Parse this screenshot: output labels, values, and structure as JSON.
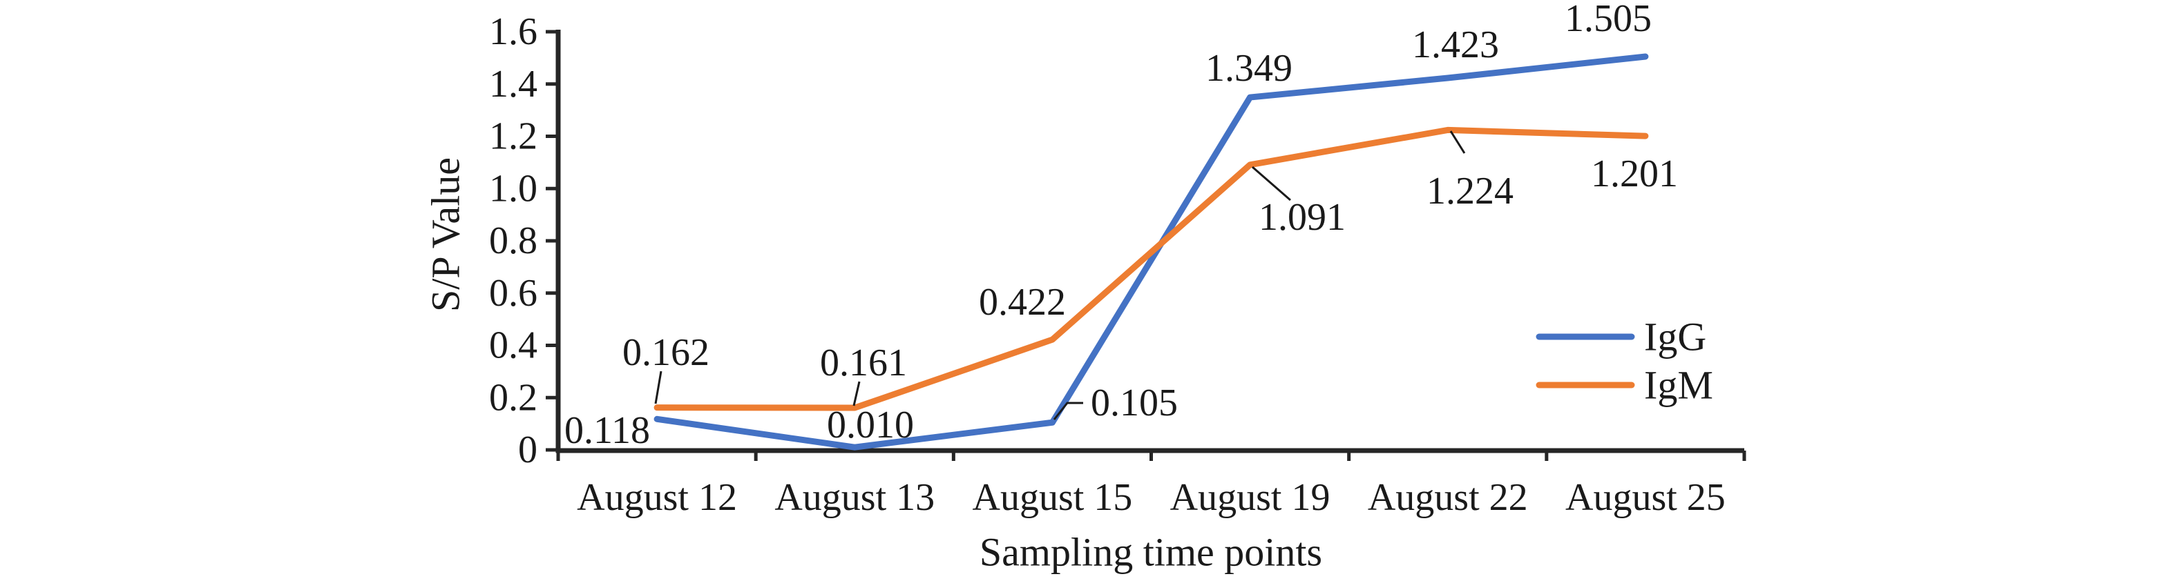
{
  "figure": {
    "background": "#ffffff",
    "text_color": "#1a1a1a",
    "axis_color": "#262626"
  },
  "chart_data": {
    "type": "line",
    "title": "",
    "xlabel": "Sampling time points",
    "ylabel": "S/P Value",
    "categories": [
      "August 12",
      "August 13",
      "August 15",
      "August 19",
      "August 22",
      "August 25"
    ],
    "series": [
      {
        "name": "IgG",
        "color": "#4472C4",
        "values": [
          0.118,
          0.01,
          0.105,
          1.349,
          1.423,
          1.505
        ],
        "labels": [
          "0.118",
          "0.010",
          "0.105",
          "1.349",
          "1.423",
          "1.505"
        ]
      },
      {
        "name": "IgM",
        "color": "#ED7D31",
        "values": [
          0.162,
          0.161,
          0.422,
          1.091,
          1.224,
          1.201
        ],
        "labels": [
          "0.162",
          "0.161",
          "0.422",
          "1.091",
          "1.224",
          "1.201"
        ]
      }
    ],
    "ylim": [
      0,
      1.6
    ],
    "ytick_step": 0.2,
    "yticks": [
      "0",
      "0.2",
      "0.4",
      "0.6",
      "0.8",
      "1.0",
      "1.2",
      "1.4",
      "1.6"
    ],
    "grid": false,
    "data_labels": true,
    "legend_position": "right-inside"
  }
}
